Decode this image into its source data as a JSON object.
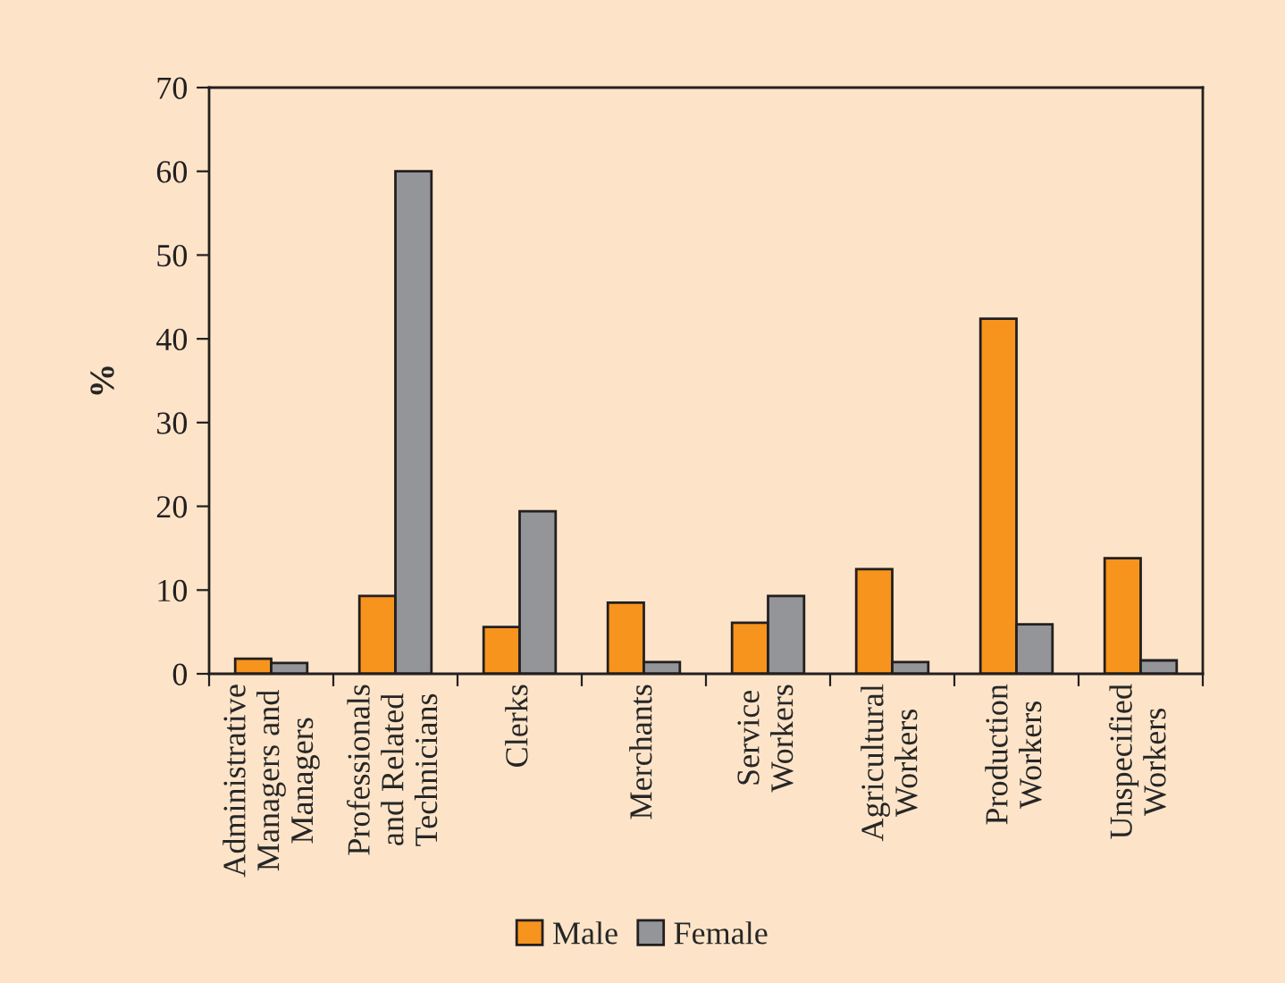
{
  "chart_data": {
    "type": "bar",
    "ylabel": "%",
    "categories": [
      "Administrative\nManagers and\nManagers",
      "Professionals\nand Related\nTechnicians",
      "Clerks",
      "Merchants",
      "Service\nWorkers",
      "Agricultural\nWorkers",
      "Production\nWorkers",
      "Unspecified\nWorkers"
    ],
    "series": [
      {
        "name": "Male",
        "color": "#f7941d",
        "values": [
          1.8,
          9.3,
          5.6,
          8.5,
          6.1,
          12.5,
          42.4,
          13.8
        ]
      },
      {
        "name": "Female",
        "color": "#939598",
        "values": [
          1.3,
          60.0,
          19.4,
          1.4,
          9.3,
          1.4,
          5.9,
          1.6
        ]
      }
    ],
    "ylim": [
      0,
      70
    ],
    "yticks": [
      0,
      10,
      20,
      30,
      40,
      50,
      60,
      70
    ],
    "grid": false,
    "legend": "bottom"
  }
}
